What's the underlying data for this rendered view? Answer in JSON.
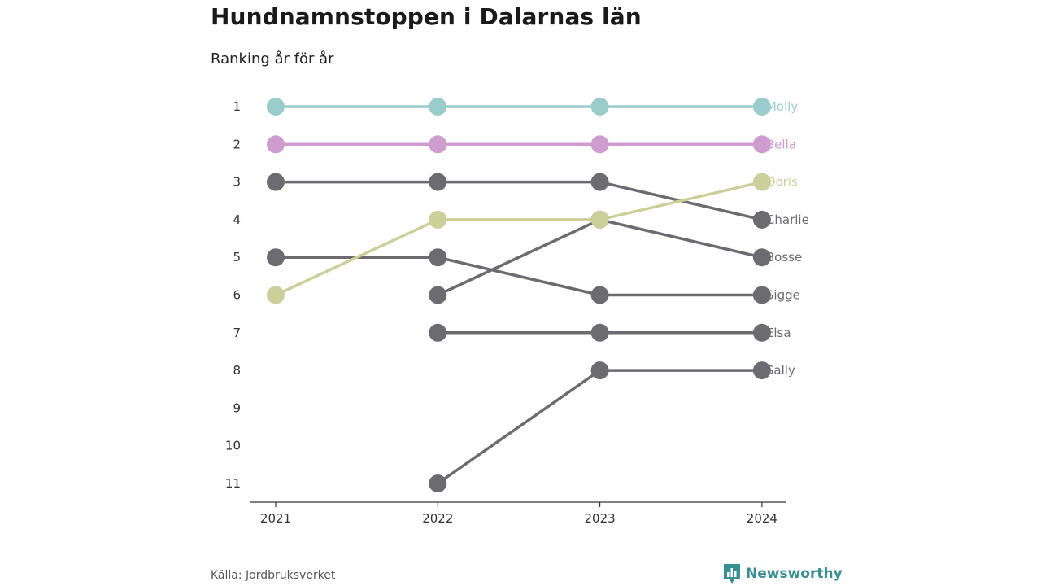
{
  "header": {
    "title": "Hundnamnstoppen i Dalarnas län",
    "subtitle": "Ranking år för år"
  },
  "footer": {
    "source": "Källa: Jordbruksverket",
    "brand": "Newsworthy",
    "brand_icon": "bar-chart-icon",
    "brand_color": "#3a8f93"
  },
  "chart_data": {
    "type": "line",
    "x": [
      "2021",
      "2022",
      "2023",
      "2024"
    ],
    "y_ticks": [
      1,
      2,
      3,
      4,
      5,
      6,
      7,
      8,
      9,
      10,
      11
    ],
    "y_reversed": true,
    "ylim": [
      1,
      11
    ],
    "grid": false,
    "series": [
      {
        "name": "Sally",
        "values": [
          null,
          11,
          8,
          8
        ],
        "color": "#6b6b70"
      },
      {
        "name": "Elsa",
        "values": [
          null,
          7,
          7,
          7
        ],
        "color": "#6b6b70"
      },
      {
        "name": "Sigge",
        "values": [
          5,
          5,
          6,
          6
        ],
        "color": "#6b6b70"
      },
      {
        "name": "Bosse",
        "values": [
          null,
          6,
          4,
          5
        ],
        "color": "#6b6b70"
      },
      {
        "name": "Charlie",
        "values": [
          3,
          3,
          3,
          4
        ],
        "color": "#6b6b70"
      },
      {
        "name": "Doris",
        "values": [
          6,
          4,
          4,
          3
        ],
        "color": "#cbd09b"
      },
      {
        "name": "Bella",
        "values": [
          2,
          2,
          2,
          2
        ],
        "color": "#cf9ccf"
      },
      {
        "name": "Molly",
        "values": [
          1,
          1,
          1,
          1
        ],
        "color": "#9bcccc"
      }
    ]
  }
}
